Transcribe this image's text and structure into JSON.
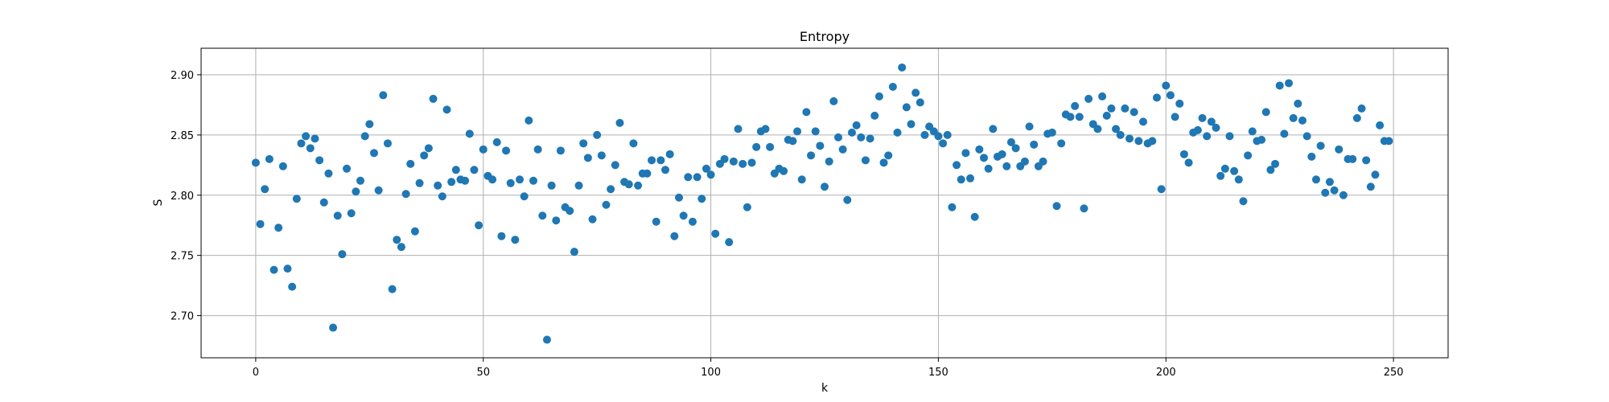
{
  "chart_data": {
    "type": "scatter",
    "title": "Entropy",
    "xlabel": "k",
    "ylabel": "S",
    "xlim": [
      -12,
      262
    ],
    "ylim": [
      2.665,
      2.922
    ],
    "xticks": [
      0,
      50,
      100,
      150,
      200,
      250
    ],
    "yticks": [
      2.7,
      2.75,
      2.8,
      2.85,
      2.9
    ],
    "xtick_labels": [
      "0",
      "50",
      "100",
      "150",
      "200",
      "250"
    ],
    "ytick_labels": [
      "2.70",
      "2.75",
      "2.80",
      "2.85",
      "2.90"
    ],
    "grid": true,
    "color": "#1f77b4",
    "x": [
      0,
      1,
      2,
      3,
      4,
      5,
      6,
      7,
      8,
      9,
      10,
      11,
      12,
      13,
      14,
      15,
      16,
      17,
      18,
      19,
      20,
      21,
      22,
      23,
      24,
      25,
      26,
      27,
      28,
      29,
      30,
      31,
      32,
      33,
      34,
      35,
      36,
      37,
      38,
      39,
      40,
      41,
      42,
      43,
      44,
      45,
      46,
      47,
      48,
      49,
      50,
      51,
      52,
      53,
      54,
      55,
      56,
      57,
      58,
      59,
      60,
      61,
      62,
      63,
      64,
      65,
      66,
      67,
      68,
      69,
      70,
      71,
      72,
      73,
      74,
      75,
      76,
      77,
      78,
      79,
      80,
      81,
      82,
      83,
      84,
      85,
      86,
      87,
      88,
      89,
      90,
      91,
      92,
      93,
      94,
      95,
      96,
      97,
      98,
      99,
      100,
      101,
      102,
      103,
      104,
      105,
      106,
      107,
      108,
      109,
      110,
      111,
      112,
      113,
      114,
      115,
      116,
      117,
      118,
      119,
      120,
      121,
      122,
      123,
      124,
      125,
      126,
      127,
      128,
      129,
      130,
      131,
      132,
      133,
      134,
      135,
      136,
      137,
      138,
      139,
      140,
      141,
      142,
      143,
      144,
      145,
      146,
      147,
      148,
      149,
      150,
      151,
      152,
      153,
      154,
      155,
      156,
      157,
      158,
      159,
      160,
      161,
      162,
      163,
      164,
      165,
      166,
      167,
      168,
      169,
      170,
      171,
      172,
      173,
      174,
      175,
      176,
      177,
      178,
      179,
      180,
      181,
      182,
      183,
      184,
      185,
      186,
      187,
      188,
      189,
      190,
      191,
      192,
      193,
      194,
      195,
      196,
      197,
      198,
      199,
      200,
      201,
      202,
      203,
      204,
      205,
      206,
      207,
      208,
      209,
      210,
      211,
      212,
      213,
      214,
      215,
      216,
      217,
      218,
      219,
      220,
      221,
      222,
      223,
      224,
      225,
      226,
      227,
      228,
      229,
      230,
      231,
      232,
      233,
      234,
      235,
      236,
      237,
      238,
      239,
      240,
      241,
      242,
      243,
      244,
      245,
      246,
      247,
      248,
      249
    ],
    "y": [
      2.827,
      2.776,
      2.805,
      2.83,
      2.738,
      2.773,
      2.824,
      2.739,
      2.724,
      2.797,
      2.843,
      2.849,
      2.839,
      2.847,
      2.829,
      2.794,
      2.818,
      2.69,
      2.783,
      2.751,
      2.822,
      2.785,
      2.803,
      2.812,
      2.849,
      2.859,
      2.835,
      2.804,
      2.883,
      2.843,
      2.722,
      2.763,
      2.757,
      2.801,
      2.826,
      2.77,
      2.81,
      2.833,
      2.839,
      2.88,
      2.808,
      2.799,
      2.871,
      2.811,
      2.821,
      2.813,
      2.812,
      2.851,
      2.821,
      2.775,
      2.838,
      2.816,
      2.813,
      2.844,
      2.766,
      2.837,
      2.81,
      2.763,
      2.813,
      2.799,
      2.862,
      2.812,
      2.838,
      2.783,
      2.68,
      2.808,
      2.779,
      2.837,
      2.79,
      2.787,
      2.753,
      2.808,
      2.843,
      2.831,
      2.78,
      2.85,
      2.833,
      2.792,
      2.805,
      2.825,
      2.86,
      2.811,
      2.809,
      2.843,
      2.808,
      2.818,
      2.818,
      2.829,
      2.778,
      2.829,
      2.821,
      2.834,
      2.766,
      2.798,
      2.783,
      2.815,
      2.778,
      2.815,
      2.797,
      2.822,
      2.817,
      2.768,
      2.826,
      2.83,
      2.761,
      2.828,
      2.855,
      2.826,
      2.79,
      2.827,
      2.84,
      2.853,
      2.855,
      2.84,
      2.818,
      2.822,
      2.82,
      2.846,
      2.845,
      2.853,
      2.813,
      2.869,
      2.833,
      2.853,
      2.841,
      2.807,
      2.828,
      2.878,
      2.848,
      2.838,
      2.796,
      2.852,
      2.858,
      2.848,
      2.829,
      2.847,
      2.866,
      2.882,
      2.827,
      2.833,
      2.89,
      2.852,
      2.906,
      2.873,
      2.859,
      2.885,
      2.877,
      2.85,
      2.857,
      2.853,
      2.849,
      2.843,
      2.85,
      2.79,
      2.825,
      2.813,
      2.835,
      2.814,
      2.782,
      2.838,
      2.831,
      2.822,
      2.855,
      2.832,
      2.834,
      2.824,
      2.844,
      2.839,
      2.824,
      2.828,
      2.857,
      2.842,
      2.824,
      2.828,
      2.851,
      2.852,
      2.791,
      2.843,
      2.867,
      2.865,
      2.874,
      2.865,
      2.789,
      2.88,
      2.859,
      2.855,
      2.882,
      2.866,
      2.872,
      2.855,
      2.85,
      2.872,
      2.847,
      2.869,
      2.845,
      2.861,
      2.843,
      2.845,
      2.881,
      2.805,
      2.891,
      2.883,
      2.865,
      2.876,
      2.834,
      2.827,
      2.852,
      2.854,
      2.864,
      2.849,
      2.861,
      2.856,
      2.816,
      2.822,
      2.849,
      2.82,
      2.813,
      2.795,
      2.833,
      2.853,
      2.845,
      2.846,
      2.869,
      2.821,
      2.826,
      2.891,
      2.851,
      2.893,
      2.864,
      2.876,
      2.862,
      2.849,
      2.832,
      2.813,
      2.841,
      2.802,
      2.811,
      2.804,
      2.838,
      2.8,
      2.83,
      2.83,
      2.864,
      2.872,
      2.829,
      2.807,
      2.817,
      2.858,
      2.845,
      2.845
    ]
  }
}
